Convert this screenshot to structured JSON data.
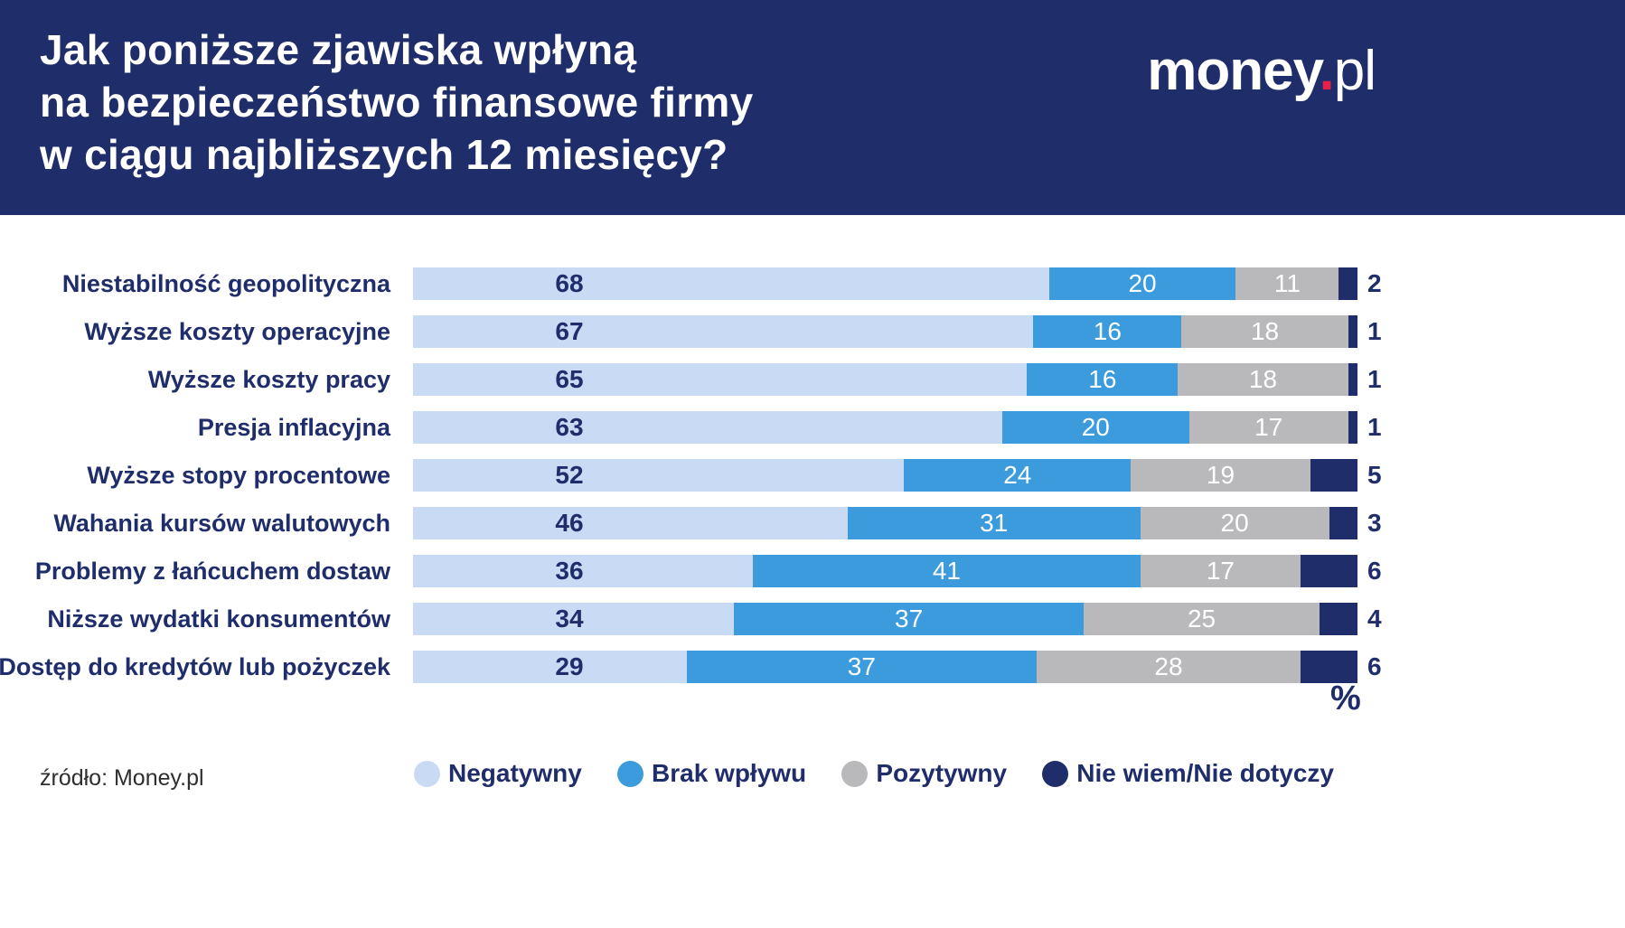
{
  "colors": {
    "header_background": "#1f2d6b",
    "logo_dot": "#e62048",
    "text_navy": "#1f2d6b",
    "value_inside_first": "#1f2d6b",
    "value_inside_middle": "#ffffff",
    "value_outside": "#1f2d6b"
  },
  "header": {
    "title_lines": [
      "Jak poniższe zjawiska wpłyną",
      "na bezpieczeństwo finansowe firmy",
      "w ciągu najbliższych 12 miesięcy?"
    ],
    "logo": {
      "money": "money",
      "dot": ".",
      "pl": "pl"
    }
  },
  "chart_data": {
    "type": "bar",
    "orientation": "horizontal",
    "stacked": true,
    "unit_label": "%",
    "xlim": [
      0,
      100
    ],
    "grid": false,
    "legend_position": "bottom",
    "categories": [
      "Niestabilność geopolityczna",
      "Wyższe koszty operacyjne",
      "Wyższe koszty pracy",
      "Presja inflacyjna",
      "Wyższe stopy procentowe",
      "Wahania kursów walutowych",
      "Problemy z łańcuchem dostaw",
      "Niższe wydatki konsumentów",
      "Dostęp do kredytów lub pożyczek"
    ],
    "series": [
      {
        "key": "negatywny",
        "name": "Negatywny",
        "color": "#c9daf5",
        "values": [
          68,
          67,
          65,
          63,
          52,
          46,
          36,
          34,
          29
        ]
      },
      {
        "key": "brak-wplywu",
        "name": "Brak wpływu",
        "color": "#3b9bdd",
        "values": [
          20,
          16,
          16,
          20,
          24,
          31,
          41,
          37,
          37
        ]
      },
      {
        "key": "pozytywny",
        "name": "Pozytywny",
        "color": "#b9b9bb",
        "values": [
          11,
          18,
          18,
          17,
          19,
          20,
          17,
          25,
          28
        ]
      },
      {
        "key": "nie-wiem-nie-dotyczy",
        "name": "Nie wiem/Nie dotyczy",
        "color": "#1f2d6b",
        "values": [
          2,
          1,
          1,
          1,
          5,
          3,
          6,
          4,
          6
        ]
      }
    ]
  },
  "footer": {
    "source": "źródło: Money.pl"
  }
}
